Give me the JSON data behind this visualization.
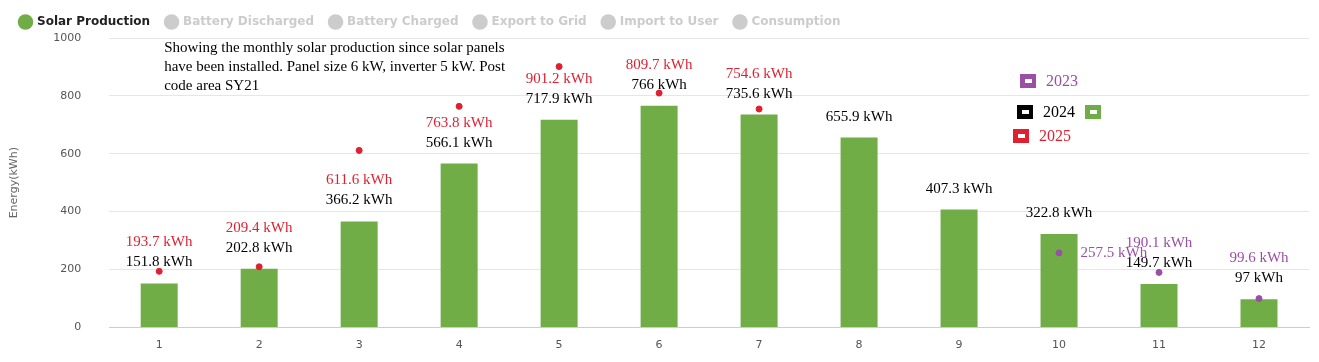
{
  "chart_data": {
    "type": "bar",
    "ylabel": "Energy(kWh)",
    "categories": [
      "1",
      "2",
      "3",
      "4",
      "5",
      "6",
      "7",
      "8",
      "9",
      "10",
      "11",
      "12"
    ],
    "series": [
      {
        "name": "Solar Production",
        "color": "#70ad47",
        "values": [
          151.8,
          202.8,
          366.2,
          566.1,
          717.9,
          766,
          735.6,
          655.9,
          407.3,
          322.8,
          149.7,
          97
        ],
        "value_labels": [
          "151.8 kWh",
          "202.8 kWh",
          "366.2 kWh",
          "566.1 kWh",
          "717.9 kWh",
          "766 kWh",
          "735.6 kWh",
          "655.9 kWh",
          "407.3 kWh",
          "322.8 kWh",
          "149.7 kWh",
          "97 kWh"
        ]
      },
      {
        "name": "Battery Discharged",
        "color": "#cccccc",
        "values": [
          null,
          null,
          null,
          null,
          null,
          null,
          null,
          null,
          null,
          null,
          null,
          null
        ]
      },
      {
        "name": "Battery Charged",
        "color": "#cccccc",
        "values": [
          null,
          null,
          null,
          null,
          null,
          null,
          null,
          null,
          null,
          null,
          null,
          null
        ]
      },
      {
        "name": "Export to Grid",
        "color": "#cccccc",
        "values": [
          null,
          null,
          null,
          null,
          null,
          null,
          null,
          null,
          null,
          null,
          null,
          null
        ]
      },
      {
        "name": "Import to User",
        "color": "#cccccc",
        "values": [
          null,
          null,
          null,
          null,
          null,
          null,
          null,
          null,
          null,
          null,
          null,
          null
        ]
      },
      {
        "name": "Consumption",
        "color": "#cccccc",
        "values": [
          null,
          null,
          null,
          null,
          null,
          null,
          null,
          null,
          null,
          null,
          null,
          null
        ]
      },
      {
        "name": "2023",
        "type": "scatter",
        "marker": "circle",
        "color": "#9b4ea6",
        "values": [
          null,
          null,
          null,
          null,
          null,
          null,
          null,
          null,
          null,
          257.5,
          190.1,
          99.6
        ],
        "value_labels": [
          null,
          null,
          null,
          null,
          null,
          null,
          null,
          null,
          null,
          "257.5 kWh",
          "190.1 kWh",
          "99.6 kWh"
        ]
      },
      {
        "name": "2025",
        "type": "scatter",
        "marker": "circle",
        "color": "#e02030",
        "values": [
          193.7,
          209.4,
          611.6,
          763.8,
          901.2,
          809.7,
          754.6,
          null,
          null,
          null,
          null,
          null
        ],
        "value_labels": [
          "193.7 kWh",
          "209.4 kWh",
          "611.6 kWh",
          "763.8 kWh",
          "901.2 kWh",
          "809.7 kWh",
          "754.6 kWh",
          null,
          null,
          null,
          null,
          null
        ]
      }
    ],
    "annotations": [
      "Showing the monthly solar production since solar panels have been installed. Panel size 6 kW, inverter 5 kW. Post code area SY21",
      "2024"
    ],
    "ylim": [
      0,
      1000
    ],
    "yticks": [
      0,
      200,
      400,
      600,
      800,
      1000
    ],
    "grid": "y",
    "legend": "top left"
  }
}
